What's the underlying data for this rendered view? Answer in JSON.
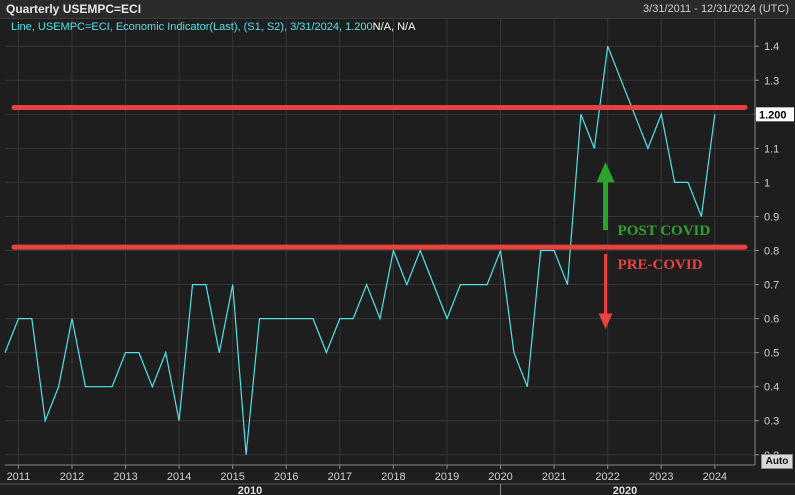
{
  "window": {
    "title": "Quarterly USEMPC=ECI",
    "date_range": "3/31/2011 - 12/31/2024 (UTC)"
  },
  "legend": {
    "text": "Line, USEMPC=ECI, Economic Indicator(Last), (S1, S2), 3/31/2024, 1.200",
    "na_text": "N/A, N/A"
  },
  "last_value_label": "1.200",
  "auto_button": "Auto",
  "annotations": {
    "post_covid": "POST COVID",
    "pre_covid": "PRE-COVID"
  },
  "colors": {
    "series": "#4fe3e8",
    "level_line": "#e8413f",
    "post_covid": "#2aa52a",
    "pre_covid": "#e8413f",
    "grid": "#353535",
    "background": "#1e1e1e"
  },
  "chart_data": {
    "type": "line",
    "series": [
      {
        "x": [
          2010.75,
          2011.0,
          2011.25,
          2011.5,
          2011.75,
          2012.0,
          2012.25,
          2012.5,
          2012.75,
          2013.0,
          2013.25,
          2013.5,
          2013.75,
          2014.0,
          2014.25,
          2014.5,
          2014.75,
          2015.0,
          2015.25,
          2015.5,
          2015.75,
          2016.0,
          2016.25,
          2016.5,
          2016.75,
          2017.0,
          2017.25,
          2017.5,
          2017.75,
          2018.0,
          2018.25,
          2018.5,
          2018.75,
          2019.0,
          2019.25,
          2019.5,
          2019.75,
          2020.0,
          2020.25,
          2020.5,
          2020.75,
          2021.0,
          2021.25,
          2021.5,
          2021.75,
          2022.0,
          2022.25,
          2022.5,
          2022.75,
          2023.0,
          2023.25,
          2023.5,
          2023.75,
          2024.0
        ],
        "y": [
          0.5,
          0.6,
          0.6,
          0.3,
          0.4,
          0.6,
          0.4,
          0.4,
          0.4,
          0.5,
          0.5,
          0.4,
          0.5,
          0.3,
          0.7,
          0.7,
          0.5,
          0.7,
          0.2,
          0.6,
          0.6,
          0.6,
          0.6,
          0.6,
          0.5,
          0.6,
          0.6,
          0.7,
          0.6,
          0.8,
          0.7,
          0.8,
          0.7,
          0.6,
          0.7,
          0.7,
          0.7,
          0.8,
          0.5,
          0.4,
          0.8,
          0.8,
          0.7,
          1.2,
          1.1,
          1.4,
          1.3,
          1.2,
          1.1,
          1.2,
          1.0,
          1.0,
          0.9,
          1.2
        ]
      }
    ],
    "x_ticks": [
      "2011",
      "2012",
      "2013",
      "2014",
      "2015",
      "2016",
      "2017",
      "2018",
      "2019",
      "2020",
      "2021",
      "2022",
      "2023",
      "2024"
    ],
    "x_decade_labels": [
      "2010",
      "2020"
    ],
    "y_ticks": [
      "0.2",
      "0.3",
      "0.4",
      "0.5",
      "0.6",
      "0.7",
      "0.8",
      "0.9",
      "1",
      "1.1",
      "1.2",
      "1.3",
      "1.4"
    ],
    "xlim": [
      2010.75,
      2024.75
    ],
    "ylim": [
      0.17,
      1.48
    ],
    "hlines": [
      1.22,
      0.81
    ],
    "grid": true
  }
}
